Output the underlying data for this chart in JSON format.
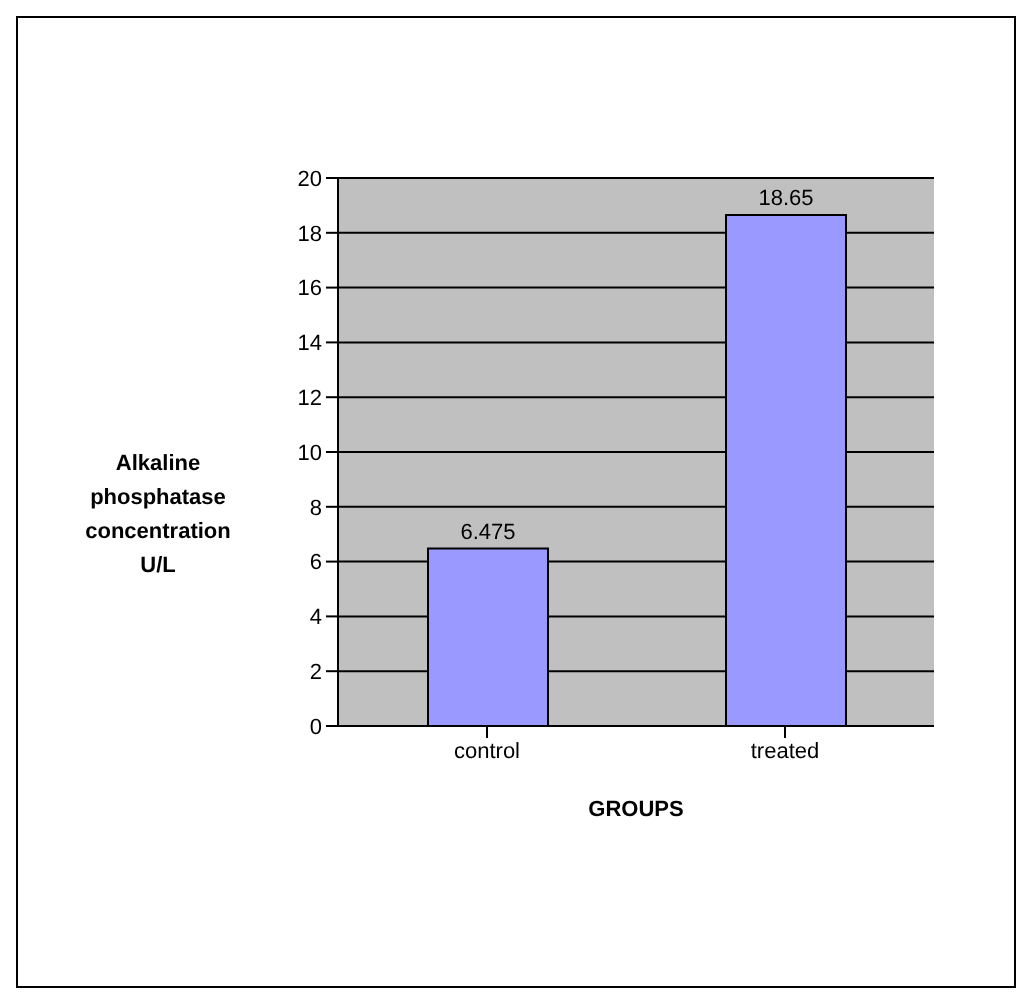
{
  "chart_data": {
    "type": "bar",
    "categories": [
      "control",
      "treated"
    ],
    "values": [
      6.475,
      18.65
    ],
    "color": "#9999ff",
    "ylim": [
      0,
      20
    ],
    "yticks": [
      0,
      2,
      4,
      6,
      8,
      10,
      12,
      14,
      16,
      18,
      20
    ],
    "grid": "y",
    "data_labels": true,
    "xlabel": "GROUPS",
    "ylabel": "Alkaline phosphatase concentration U/L"
  }
}
